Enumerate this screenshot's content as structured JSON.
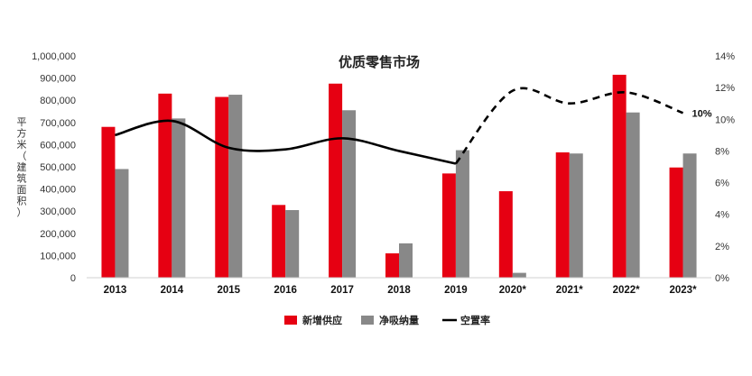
{
  "chart_data": {
    "type": "bar",
    "title": "优质零售市场",
    "ylabel": "平方米（建筑面积）",
    "categories": [
      "2013",
      "2014",
      "2015",
      "2016",
      "2017",
      "2018",
      "2019",
      "2020*",
      "2021*",
      "2022*",
      "2023*"
    ],
    "series": [
      {
        "name": "新增供应",
        "type": "bar",
        "axis": "left",
        "color": "#e60012",
        "values": [
          680000,
          830000,
          815000,
          328000,
          875000,
          110000,
          470000,
          390000,
          565000,
          915000,
          497000
        ]
      },
      {
        "name": "净吸纳量",
        "type": "bar",
        "axis": "left",
        "color": "#888888",
        "values": [
          490000,
          718000,
          825000,
          305000,
          755000,
          155000,
          575000,
          22000,
          560000,
          745000,
          560000
        ]
      },
      {
        "name": "空置率",
        "type": "line",
        "axis": "right",
        "color": "#000000",
        "values": [
          9.0,
          9.9,
          8.2,
          8.1,
          8.8,
          8.0,
          7.2,
          11.8,
          11.0,
          11.7,
          10.4
        ],
        "dashed_from_index": 6
      }
    ],
    "ylim": [
      0,
      1000000
    ],
    "y_ticks": [
      "0",
      "100,000",
      "200,000",
      "300,000",
      "400,000",
      "500,000",
      "600,000",
      "700,000",
      "800,000",
      "900,000",
      "1,000,000"
    ],
    "y2lim": [
      0,
      14
    ],
    "y2_ticks": [
      "0%",
      "2%",
      "4%",
      "6%",
      "8%",
      "10%",
      "12%",
      "14%"
    ],
    "annotations": [
      {
        "text": "10%",
        "series": "空置率",
        "index": 10
      }
    ],
    "legend_position": "bottom",
    "grid": false
  }
}
